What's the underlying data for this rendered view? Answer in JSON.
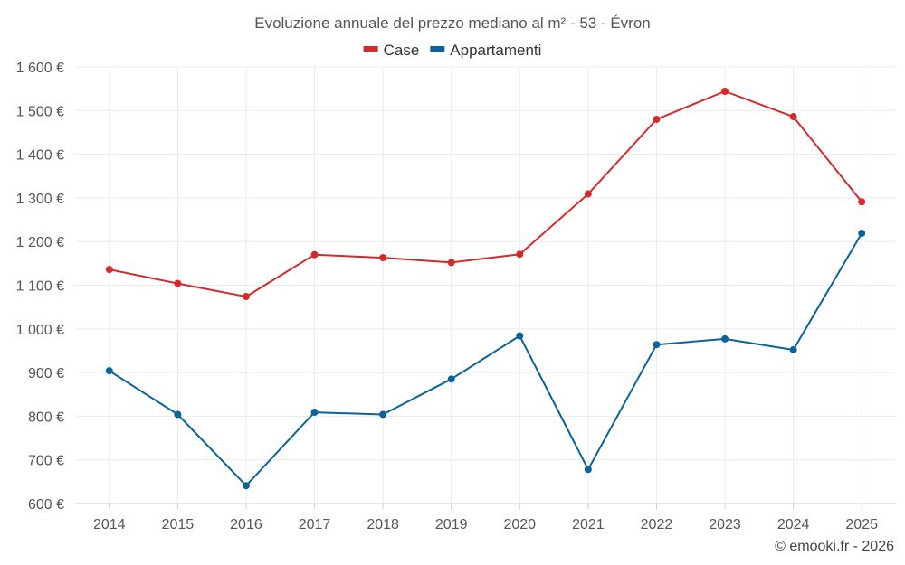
{
  "chart_data": {
    "type": "line",
    "title": "Evoluzione annuale del prezzo mediano al m² - 53 - Évron",
    "categories": [
      "2014",
      "2015",
      "2016",
      "2017",
      "2018",
      "2019",
      "2020",
      "2021",
      "2022",
      "2023",
      "2024",
      "2025"
    ],
    "series": [
      {
        "name": "Case",
        "color": "#d42a2a",
        "values": [
          1136,
          1104,
          1074,
          1170,
          1163,
          1152,
          1171,
          1309,
          1480,
          1544,
          1486,
          1291
        ]
      },
      {
        "name": "Appartamenti",
        "color": "#0b6399",
        "values": [
          904,
          804,
          641,
          809,
          804,
          885,
          984,
          678,
          964,
          977,
          952,
          1219
        ]
      }
    ],
    "ylim": [
      600,
      1600
    ],
    "yticks": [
      600,
      700,
      800,
      900,
      1000,
      1100,
      1200,
      1300,
      1400,
      1500,
      1600
    ],
    "ytick_labels": [
      "600 €",
      "700 €",
      "800 €",
      "900 €",
      "1 000 €",
      "1 100 €",
      "1 200 €",
      "1 300 €",
      "1 400 €",
      "1 500 €",
      "1 600 €"
    ],
    "legend_position": "top-center",
    "grid": true
  },
  "credit": "© emooki.fr - 2026"
}
